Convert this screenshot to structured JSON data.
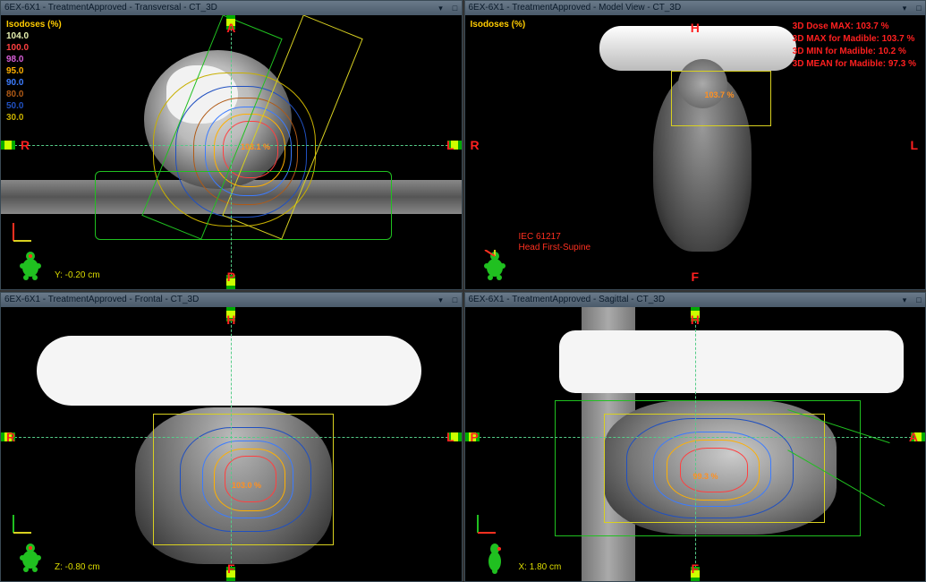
{
  "panels": {
    "tl": {
      "title": "6EX-6X1  -  TreatmentApproved - Transversal  -  CT_3D",
      "orient": {
        "top": "A",
        "bottom": "P",
        "left": "R",
        "right": "L"
      },
      "dose_point": "103.1 %",
      "coord": "Y: -0.20 cm"
    },
    "tr": {
      "title": "6EX-6X1  -  TreatmentApproved -  Model View  -  CT_3D",
      "orient": {
        "top": "H",
        "bottom": "F",
        "left": "R",
        "right": "L"
      },
      "dose_point": "103.7 %",
      "iec": "IEC 61217\nHead First-Supine"
    },
    "bl": {
      "title": "6EX-6X1  -  TreatmentApproved - Frontal  -  CT_3D",
      "orient": {
        "top": "H",
        "bottom": "F",
        "left": "R",
        "right": "L"
      },
      "dose_point": "103.0 %",
      "coord": "Z: -0.80 cm"
    },
    "br": {
      "title": "6EX-6X1  -  TreatmentApproved -  Sagittal  -  CT_3D",
      "orient": {
        "top": "H",
        "bottom": "F",
        "left": "P",
        "right": "A"
      },
      "dose_point": "99.3 %",
      "coord": "X: 1.80 cm"
    }
  },
  "isodoses": {
    "title": "Isodoses (%)",
    "levels": [
      {
        "label": "104.0",
        "color": "#e6f0b0"
      },
      {
        "label": "100.0",
        "color": "#ff4040"
      },
      {
        "label": "98.0",
        "color": "#d85fd8"
      },
      {
        "label": "95.0",
        "color": "#ffb000"
      },
      {
        "label": "90.0",
        "color": "#3c7cff"
      },
      {
        "label": "80.0",
        "color": "#b05a16"
      },
      {
        "label": "50.0",
        "color": "#2050c0"
      },
      {
        "label": "30.0",
        "color": "#c8b000"
      }
    ]
  },
  "dose_stats": [
    "3D Dose MAX: 103.7 %",
    "3D MAX for Madible: 103.7 %",
    "3D MIN for Madible: 10.2 %",
    "3D MEAN for Madible: 97.3 %"
  ],
  "colors": {
    "bg": "#000000",
    "titlebar_top": "#6a7a8a",
    "titlebar_bottom": "#4a5a6a",
    "crosshair": "#55cc88",
    "axis_marker": "#00aa00",
    "axis_marker_inner": "#ccff00",
    "orient_text": "#ff2020",
    "legend_title": "#ffcc00",
    "coord_text": "#dddd00",
    "beam_yellow": "#d8d020",
    "beam_green": "#20c020",
    "skin_contour": "#20c020",
    "body_figure": "#20c020",
    "dense_tissue": "#f5f5f5",
    "ct_table": "#6a6a6a"
  }
}
